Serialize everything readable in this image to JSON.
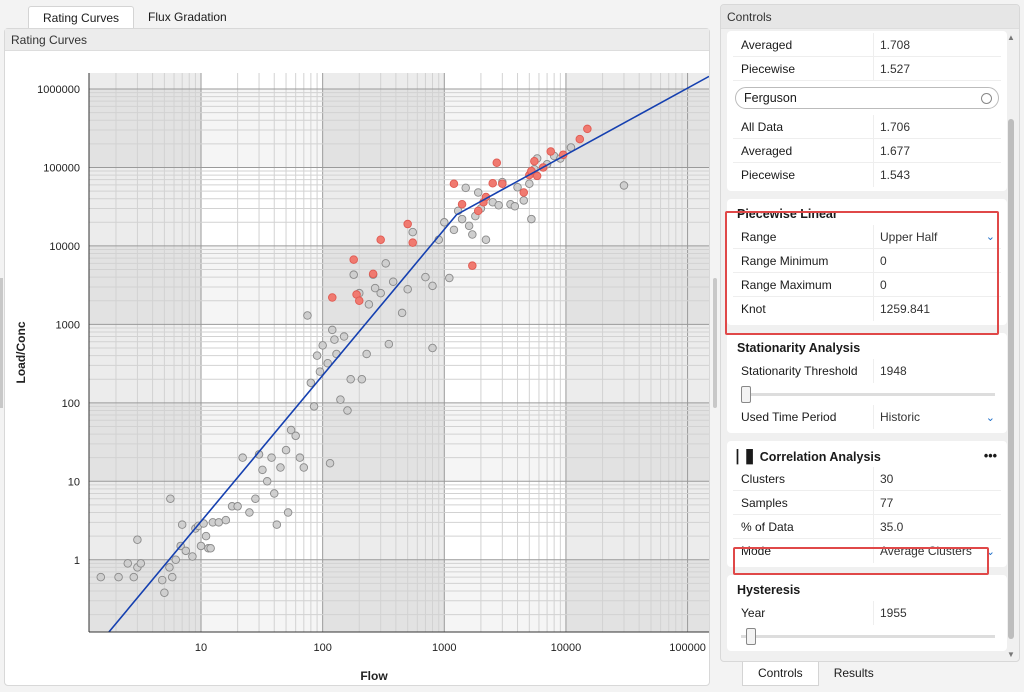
{
  "tabs": [
    "Rating Curves",
    "Flux Gradation"
  ],
  "panel_title": "Rating Curves",
  "controls_title": "Controls",
  "bottom_tabs": [
    "Controls",
    "Results"
  ],
  "top_rows": [
    {
      "k": "Averaged",
      "v": "1.708"
    },
    {
      "k": "Piecewise",
      "v": "1.527"
    }
  ],
  "ferguson": {
    "label": "Ferguson",
    "rows": [
      {
        "k": "All Data",
        "v": "1.706"
      },
      {
        "k": "Averaged",
        "v": "1.677"
      },
      {
        "k": "Piecewise",
        "v": "1.543"
      }
    ]
  },
  "piecewise": {
    "title": "Piecewise Linear",
    "rows": [
      {
        "k": "Range",
        "v": "Upper Half"
      },
      {
        "k": "Range Minimum",
        "v": "0"
      },
      {
        "k": "Range Maximum",
        "v": "0"
      },
      {
        "k": "Knot",
        "v": "1259.841"
      }
    ]
  },
  "stationarity": {
    "title": "Stationarity Analysis",
    "threshold_label": "Stationarity Threshold",
    "threshold_value": "1948",
    "slider_pos": 0.0,
    "time_label": "Used Time Period",
    "time_value": "Historic"
  },
  "correlation": {
    "title": "Correlation Analysis",
    "menu": "•••",
    "rows": [
      {
        "k": "Clusters",
        "v": "30"
      },
      {
        "k": "Samples",
        "v": "77"
      },
      {
        "k": "% of Data",
        "v": "35.0"
      }
    ],
    "mode_label": "Mode",
    "mode_value": "Average Clusters"
  },
  "hysteresis": {
    "title": "Hysteresis",
    "year_label": "Year",
    "year_value": "1955",
    "slider_pos": 0.02
  },
  "colors": {
    "fit": "#1540b0",
    "highlight": "#f07a70",
    "point": "#cfcfcf",
    "box": "#e04848"
  },
  "chart_data": {
    "type": "scatter",
    "xlabel": "Flow",
    "ylabel": "Load/Conc",
    "xscale": "log",
    "yscale": "log",
    "xlim": [
      1.2,
      150000
    ],
    "ylim": [
      0.12,
      1600000
    ],
    "xticks": [
      {
        "v": 10,
        "label": "10"
      },
      {
        "v": 100,
        "label": "100"
      },
      {
        "v": 1000,
        "label": "1000"
      },
      {
        "v": 10000,
        "label": "10000"
      },
      {
        "v": 100000,
        "label": "100000"
      }
    ],
    "yticks": [
      {
        "v": 1,
        "label": "1"
      },
      {
        "v": 10,
        "label": "10"
      },
      {
        "v": 100,
        "label": "100"
      },
      {
        "v": 1000,
        "label": "1000"
      },
      {
        "v": 10000,
        "label": "10000"
      },
      {
        "v": 100000,
        "label": "100000"
      },
      {
        "v": 1000000,
        "label": "1000000"
      }
    ],
    "fit_line": [
      [
        1.75,
        0.12
      ],
      [
        1260,
        25000
      ],
      [
        150000,
        1450000
      ]
    ],
    "series": [
      {
        "name": "",
        "color": "#cfcfcf",
        "points": [
          [
            1.5,
            0.6
          ],
          [
            2.1,
            0.6
          ],
          [
            2.5,
            0.9
          ],
          [
            2.8,
            0.6
          ],
          [
            3.0,
            1.8
          ],
          [
            3.0,
            0.8
          ],
          [
            3.2,
            0.9
          ],
          [
            4.8,
            0.55
          ],
          [
            5.0,
            0.38
          ],
          [
            5.5,
            0.8
          ],
          [
            5.6,
            6.0
          ],
          [
            5.8,
            0.6
          ],
          [
            6.2,
            1.0
          ],
          [
            6.8,
            1.5
          ],
          [
            7.0,
            2.8
          ],
          [
            7.5,
            1.3
          ],
          [
            8.5,
            1.1
          ],
          [
            9.0,
            2.5
          ],
          [
            9.5,
            2.7
          ],
          [
            10.0,
            1.5
          ],
          [
            10.5,
            2.9
          ],
          [
            11.0,
            2.0
          ],
          [
            11.5,
            1.4
          ],
          [
            12.0,
            1.4
          ],
          [
            12.5,
            3.0
          ],
          [
            14.0,
            3.0
          ],
          [
            16.0,
            3.2
          ],
          [
            18.0,
            4.8
          ],
          [
            20.0,
            4.8
          ],
          [
            22.0,
            20.0
          ],
          [
            25.0,
            4.0
          ],
          [
            28.0,
            6.0
          ],
          [
            30.0,
            22.0
          ],
          [
            32.0,
            14.0
          ],
          [
            35.0,
            10.0
          ],
          [
            38.0,
            20.0
          ],
          [
            40.0,
            7.0
          ],
          [
            42.0,
            2.8
          ],
          [
            45.0,
            15.0
          ],
          [
            50.0,
            25.0
          ],
          [
            52.0,
            4.0
          ],
          [
            55.0,
            45.0
          ],
          [
            60.0,
            38.0
          ],
          [
            65.0,
            20.0
          ],
          [
            70.0,
            15.0
          ],
          [
            75.0,
            1300.0
          ],
          [
            80.0,
            180.0
          ],
          [
            85.0,
            90.0
          ],
          [
            90.0,
            400.0
          ],
          [
            95.0,
            250.0
          ],
          [
            100.0,
            540.0
          ],
          [
            110.0,
            320.0
          ],
          [
            115.0,
            17.0
          ],
          [
            120.0,
            850.0
          ],
          [
            125.0,
            640.0
          ],
          [
            130.0,
            420.0
          ],
          [
            140.0,
            110.0
          ],
          [
            150.0,
            700.0
          ],
          [
            160.0,
            80.0
          ],
          [
            170.0,
            200.0
          ],
          [
            180.0,
            4300.0
          ],
          [
            200.0,
            2500.0
          ],
          [
            210.0,
            200.0
          ],
          [
            230.0,
            420.0
          ],
          [
            240.0,
            1800.0
          ],
          [
            260.0,
            4300.0
          ],
          [
            270.0,
            2900.0
          ],
          [
            300.0,
            2500.0
          ],
          [
            330.0,
            6000.0
          ],
          [
            350.0,
            560.0
          ],
          [
            380.0,
            3500.0
          ],
          [
            450.0,
            1400.0
          ],
          [
            500.0,
            2800.0
          ],
          [
            550.0,
            15000.0
          ],
          [
            700.0,
            4000.0
          ],
          [
            800.0,
            3100.0
          ],
          [
            800.0,
            500.0
          ],
          [
            900.0,
            12000.0
          ],
          [
            1000.0,
            20000.0
          ],
          [
            1100.0,
            3900.0
          ],
          [
            1200.0,
            16000.0
          ],
          [
            1300.0,
            28000.0
          ],
          [
            1400.0,
            22000.0
          ],
          [
            1500.0,
            55000.0
          ],
          [
            1600.0,
            18000.0
          ],
          [
            1700.0,
            14000.0
          ],
          [
            1800.0,
            24000.0
          ],
          [
            1900.0,
            48000.0
          ],
          [
            2000.0,
            30000.0
          ],
          [
            2200.0,
            12000.0
          ],
          [
            2500.0,
            36000.0
          ],
          [
            2800.0,
            33000.0
          ],
          [
            3000.0,
            65000.0
          ],
          [
            3500.0,
            34000.0
          ],
          [
            3800.0,
            32000.0
          ],
          [
            4000.0,
            56000.0
          ],
          [
            4500.0,
            38000.0
          ],
          [
            5000.0,
            62000.0
          ],
          [
            5200.0,
            22000.0
          ],
          [
            5500.0,
            95000.0
          ],
          [
            5800.0,
            130000.0
          ],
          [
            7000.0,
            110000.0
          ],
          [
            8000.0,
            140000.0
          ],
          [
            9000.0,
            130000.0
          ],
          [
            11000.0,
            180000.0
          ],
          [
            30000.0,
            59000.0
          ]
        ]
      },
      {
        "name": "",
        "color": "#f07a70",
        "points": [
          [
            120,
            2200
          ],
          [
            180,
            6700
          ],
          [
            190,
            2400
          ],
          [
            200,
            2000
          ],
          [
            260,
            4400
          ],
          [
            300,
            12000
          ],
          [
            500,
            19000
          ],
          [
            550,
            11000
          ],
          [
            1200,
            62000
          ],
          [
            1400,
            34000
          ],
          [
            1700,
            5600
          ],
          [
            1900,
            28000
          ],
          [
            2100,
            36000
          ],
          [
            2200,
            42000
          ],
          [
            2500,
            63000
          ],
          [
            2700,
            115000
          ],
          [
            3000,
            62000
          ],
          [
            4500,
            48000
          ],
          [
            5000,
            80000
          ],
          [
            5200,
            90000
          ],
          [
            5500,
            120000
          ],
          [
            5800,
            78000
          ],
          [
            6500,
            100000
          ],
          [
            7500,
            160000
          ],
          [
            9500,
            145000
          ],
          [
            13000,
            230000
          ],
          [
            15000,
            310000
          ]
        ]
      }
    ]
  }
}
